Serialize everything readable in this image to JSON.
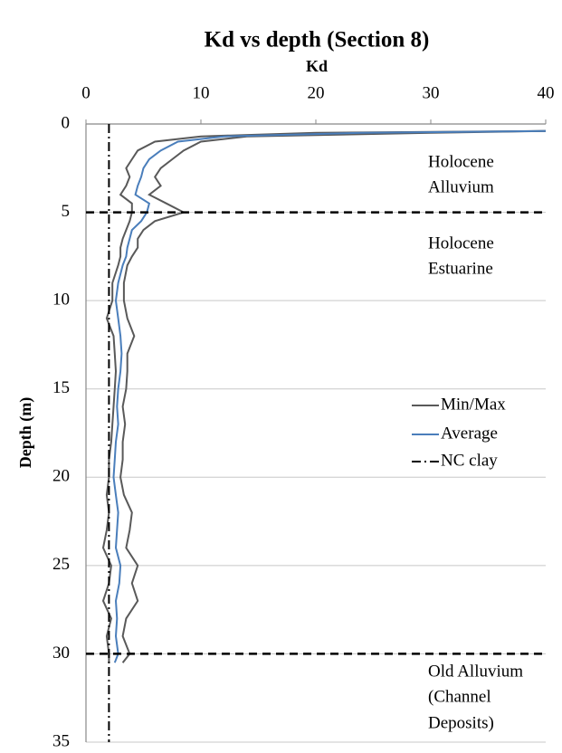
{
  "chart_data": {
    "type": "line",
    "title": "Kd vs depth (Section 8)",
    "x_label": "Kd",
    "y_label": "Depth (m)",
    "xlim": [
      0,
      40
    ],
    "xticks": [
      0,
      10,
      20,
      30,
      40
    ],
    "ylim": [
      0,
      35
    ],
    "yticks": [
      0,
      5,
      10,
      15,
      20,
      25,
      30,
      35
    ],
    "y_inverted": true,
    "grid": true,
    "depth": [
      0.4,
      0.5,
      0.7,
      1,
      1.5,
      2,
      2.5,
      3,
      3.5,
      4,
      4.5,
      5,
      5.5,
      6,
      6.5,
      7,
      7.5,
      8,
      9,
      10,
      11,
      12,
      13,
      14,
      15,
      16,
      17,
      18,
      19,
      20,
      21,
      22,
      23,
      24,
      25,
      26,
      27,
      28,
      29,
      30,
      30.5
    ],
    "series": [
      {
        "name": "Min/Max",
        "color": "#595959",
        "min": [
          40,
          20,
          10,
          6,
          4.5,
          4,
          3.5,
          3.8,
          3.5,
          3,
          4,
          4,
          3.8,
          3.5,
          3.2,
          3,
          3,
          2.8,
          2.3,
          2.3,
          1.8,
          2.4,
          2.5,
          2.6,
          2.5,
          2.4,
          2.3,
          2.2,
          2,
          2,
          1.8,
          2,
          1.8,
          1.5,
          2.2,
          2,
          1.5,
          2.2,
          1.8,
          2,
          2
        ],
        "max": [
          40,
          30,
          14,
          10,
          8.5,
          7.5,
          6.5,
          6,
          6.5,
          5.5,
          7,
          8.5,
          6,
          5,
          4.5,
          4.5,
          4,
          3.6,
          3.3,
          3.3,
          3.6,
          4.2,
          3.6,
          3.6,
          3.5,
          3.2,
          3.4,
          3.2,
          3.2,
          3,
          3.3,
          4,
          3.8,
          3.5,
          4.5,
          4,
          4.5,
          3.5,
          3.2,
          3.8,
          3.2
        ]
      },
      {
        "name": "Average",
        "color": "#4a7ebb",
        "values": [
          40,
          24,
          12,
          8,
          6.5,
          5.5,
          5,
          4.8,
          4.5,
          4.3,
          5.5,
          5.3,
          4.8,
          4,
          3.8,
          3.6,
          3.5,
          3.2,
          2.8,
          2.6,
          2.8,
          3,
          3.1,
          3,
          2.8,
          2.7,
          2.8,
          2.6,
          2.5,
          2.4,
          2.6,
          2.8,
          2.7,
          2.6,
          3,
          2.9,
          2.6,
          2.7,
          2.6,
          2.8,
          2.5
        ]
      },
      {
        "name": "NC clay",
        "color": "#000000",
        "dash": "dashdot",
        "values": [
          2,
          2
        ],
        "depth": [
          0,
          35
        ]
      }
    ],
    "hlines": [
      5,
      30
    ],
    "legend": "right",
    "annotations": [
      [
        "Holocene",
        "Alluvium"
      ],
      [
        "Holocene",
        "Estuarine"
      ],
      [
        "Old Alluvium",
        "(Channel",
        "Deposits)"
      ]
    ]
  }
}
